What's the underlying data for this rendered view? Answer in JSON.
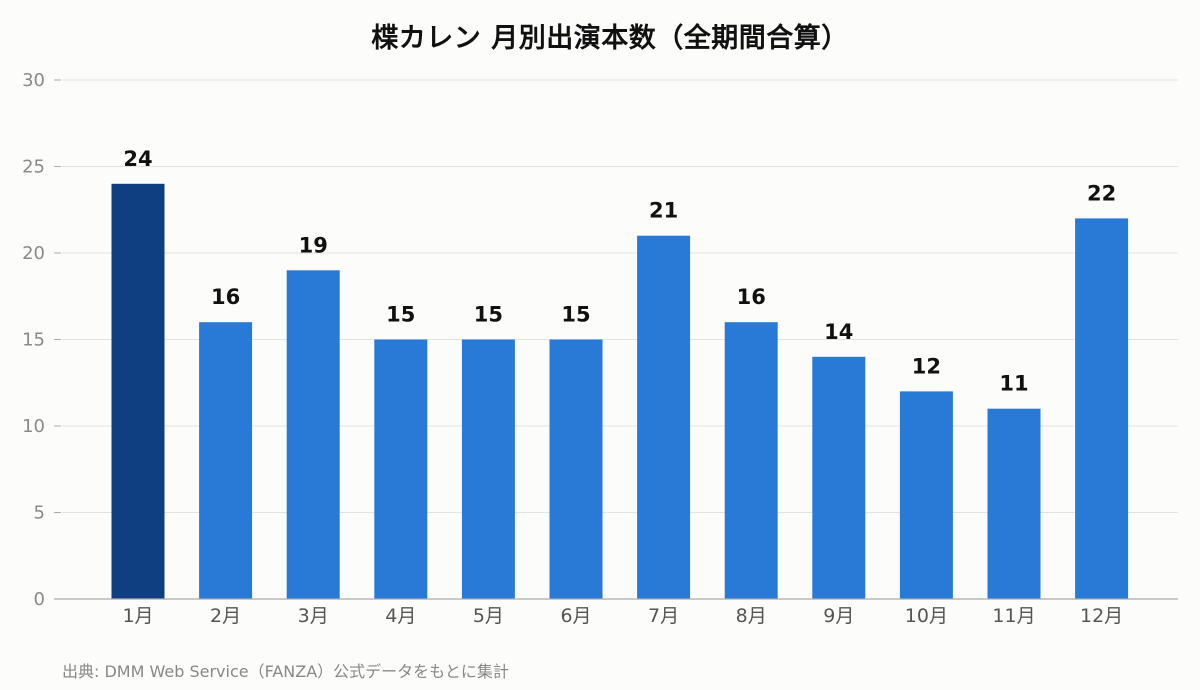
{
  "chart_data": {
    "type": "bar",
    "title": "楪カレン 月別出演本数（全期間合算）",
    "xlabel": "",
    "ylabel": "",
    "categories": [
      "1月",
      "2月",
      "3月",
      "4月",
      "5月",
      "6月",
      "7月",
      "8月",
      "9月",
      "10月",
      "11月",
      "12月"
    ],
    "values": [
      24,
      16,
      19,
      15,
      15,
      15,
      21,
      16,
      14,
      12,
      11,
      22
    ],
    "ylim": [
      0,
      30
    ],
    "yticks": [
      0,
      5,
      10,
      15,
      20,
      25,
      30
    ],
    "grid": true,
    "legend": "none",
    "highlight_index": 0,
    "colors": {
      "bar": "#2979d6",
      "highlight": "#0f3f80",
      "grid": "#e2e2e2",
      "axis": "#aaaaaa"
    }
  },
  "source": "出典: DMM Web Service（FANZA）公式データをもとに集計"
}
